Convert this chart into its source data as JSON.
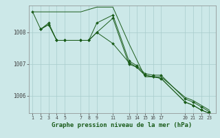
{
  "background_color": "#cce8e8",
  "line_color": "#1a5c1a",
  "grid_color": "#a8cccc",
  "title": "Graphe pression niveau de la mer (hPa)",
  "xlim": [
    0.5,
    23.8
  ],
  "ylim": [
    1005.45,
    1008.85
  ],
  "yticks": [
    1006,
    1007,
    1008
  ],
  "xticks": [
    1,
    2,
    3,
    4,
    5,
    7,
    8,
    9,
    11,
    13,
    14,
    15,
    16,
    17,
    20,
    21,
    22,
    23
  ],
  "series": [
    {
      "x": [
        1,
        5,
        7,
        9,
        11,
        13,
        15,
        17,
        20,
        21,
        22,
        23
      ],
      "y": [
        1008.65,
        1008.65,
        1008.65,
        1008.8,
        1008.8,
        1007.65,
        1006.6,
        1006.6,
        1005.95,
        1005.85,
        1005.7,
        1005.55
      ],
      "markers": false
    },
    {
      "x": [
        2,
        3,
        4,
        5,
        7,
        8,
        9,
        11,
        13,
        14,
        15,
        16,
        17,
        20,
        21,
        22,
        23
      ],
      "y": [
        1008.1,
        1008.3,
        1007.75,
        1007.75,
        1007.75,
        1007.75,
        1008.3,
        1008.55,
        1007.1,
        1006.95,
        1006.7,
        1006.65,
        1006.65,
        1005.9,
        1005.8,
        1005.65,
        1005.5
      ],
      "markers": true
    },
    {
      "x": [
        2,
        3,
        4,
        5,
        7,
        8,
        9,
        11,
        13,
        14,
        15,
        16,
        17,
        20,
        21,
        22,
        23
      ],
      "y": [
        1008.1,
        1008.25,
        1007.75,
        1007.75,
        1007.75,
        1007.75,
        1008.0,
        1008.45,
        1007.0,
        1006.9,
        1006.65,
        1006.6,
        1006.55,
        1005.8,
        1005.7,
        1005.55,
        1005.45
      ],
      "markers": true
    },
    {
      "x": [
        1,
        2,
        3,
        4,
        5,
        7,
        8,
        9,
        11,
        13,
        14,
        15,
        16,
        17,
        20,
        21,
        22,
        23
      ],
      "y": [
        1008.65,
        1008.1,
        1008.25,
        1007.75,
        1007.75,
        1007.75,
        1007.75,
        1008.0,
        1007.65,
        1007.05,
        1006.9,
        1006.65,
        1006.6,
        1006.55,
        1005.8,
        1005.7,
        1005.55,
        1005.45
      ],
      "markers": true
    }
  ]
}
